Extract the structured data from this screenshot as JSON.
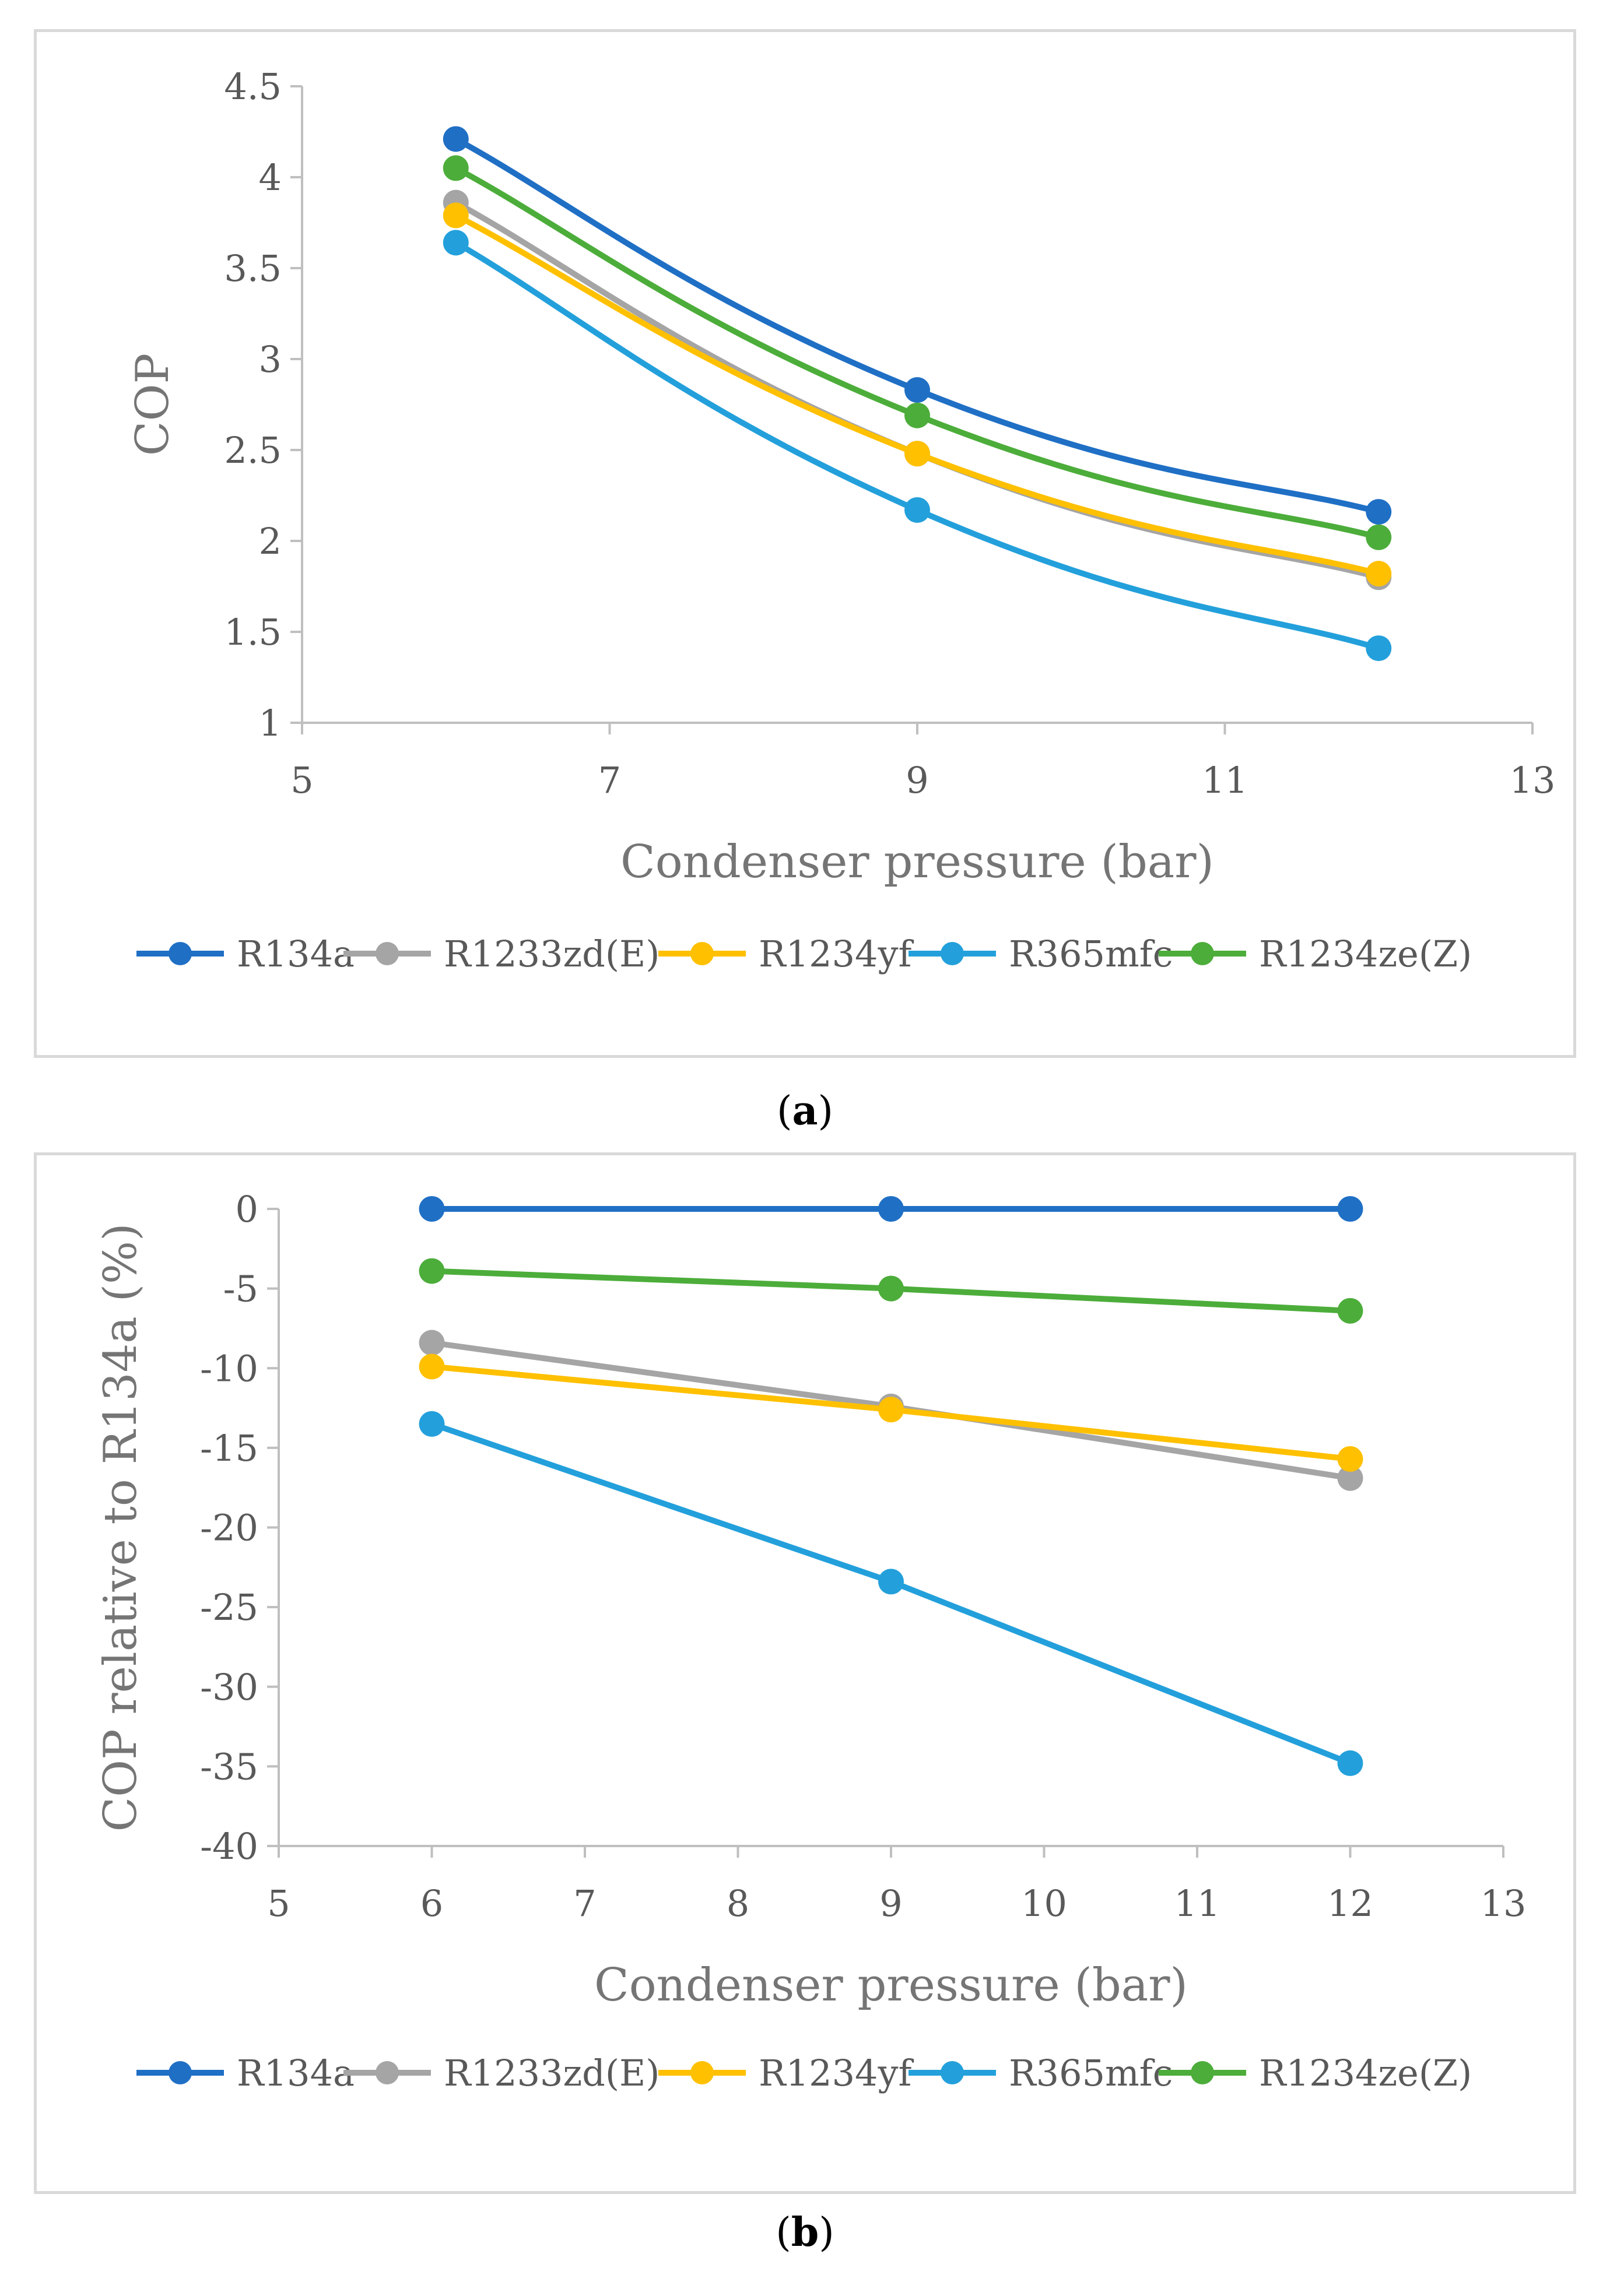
{
  "chart_data": [
    {
      "type": "line",
      "xlabel": "Condenser pressure (bar)",
      "ylabel": "COP",
      "xlim": [
        5,
        13
      ],
      "ylim": [
        1,
        4.5
      ],
      "x_ticks": [
        "5",
        "7",
        "9",
        "11",
        "13"
      ],
      "y_ticks": [
        "1",
        "1.5",
        "2",
        "2.5",
        "3",
        "3.5",
        "4",
        "4.5"
      ],
      "x": [
        6,
        9,
        12
      ],
      "smooth": true,
      "legend_position": "bottom",
      "grid": false,
      "series": [
        {
          "name": "R134a",
          "color": "#1f6fc5",
          "values": [
            4.21,
            2.83,
            2.16
          ]
        },
        {
          "name": "R1233zd(E)",
          "color": "#a5a5a5",
          "values": [
            3.86,
            2.48,
            1.8
          ]
        },
        {
          "name": "R1234yf",
          "color": "#ffc000",
          "values": [
            3.79,
            2.48,
            1.82
          ]
        },
        {
          "name": "R365mfc",
          "color": "#23a0db",
          "values": [
            3.64,
            2.17,
            1.41
          ]
        },
        {
          "name": "R1234ze(Z)",
          "color": "#4cad3a",
          "values": [
            4.05,
            2.69,
            2.02
          ]
        }
      ]
    },
    {
      "type": "line",
      "xlabel": "Condenser pressure (bar)",
      "ylabel": "COP relative to R134a (%)",
      "xlim": [
        5,
        13
      ],
      "ylim": [
        -40,
        0
      ],
      "x_ticks": [
        "5",
        "6",
        "7",
        "8",
        "9",
        "10",
        "11",
        "12",
        "13"
      ],
      "y_ticks": [
        "-40",
        "-35",
        "-30",
        "-25",
        "-20",
        "-15",
        "-10",
        "-5",
        "0"
      ],
      "x": [
        6,
        9,
        12
      ],
      "smooth": false,
      "legend_position": "bottom",
      "grid": false,
      "series": [
        {
          "name": "R134a",
          "color": "#1f6fc5",
          "values": [
            0,
            0,
            0
          ]
        },
        {
          "name": "R1233zd(E)",
          "color": "#a5a5a5",
          "values": [
            -8.4,
            -12.4,
            -16.9
          ]
        },
        {
          "name": "R1234yf",
          "color": "#ffc000",
          "values": [
            -9.9,
            -12.6,
            -15.7
          ]
        },
        {
          "name": "R365mfc",
          "color": "#23a0db",
          "values": [
            -13.5,
            -23.4,
            -34.8
          ]
        },
        {
          "name": "R1234ze(Z)",
          "color": "#4cad3a",
          "values": [
            -3.9,
            -5.0,
            -6.4
          ]
        }
      ]
    }
  ],
  "captions": {
    "a_open": "(",
    "a_letter": "a",
    "a_close": ")",
    "b_open": "(",
    "b_letter": "b",
    "b_close": ")"
  }
}
